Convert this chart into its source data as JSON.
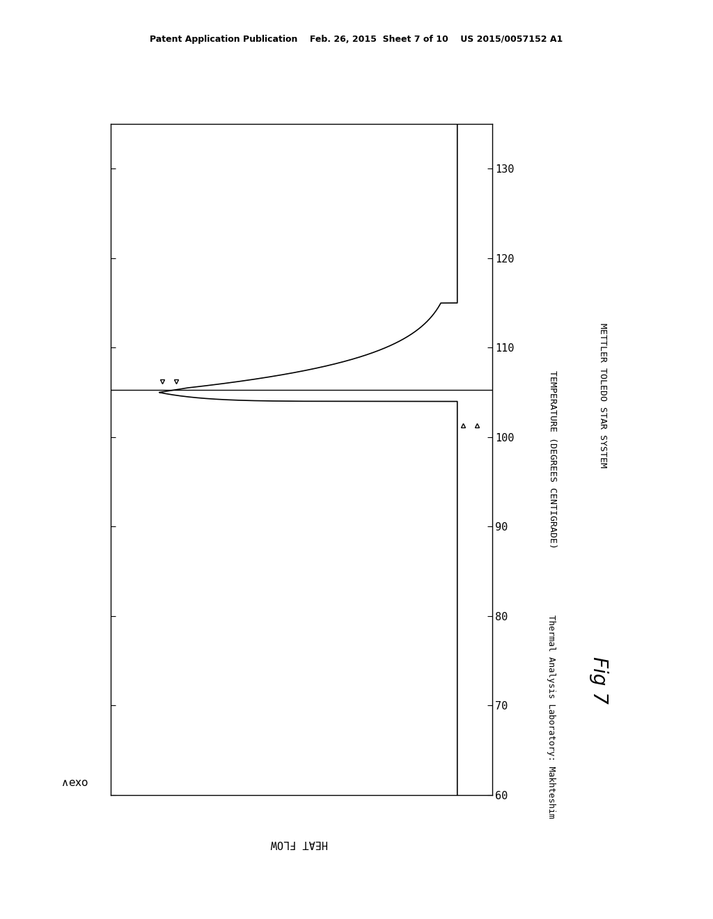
{
  "background_color": "#ffffff",
  "plot_bg_color": "#ffffff",
  "temp_ticks": [
    60,
    70,
    80,
    90,
    100,
    110,
    120,
    130
  ],
  "page_header": "Patent Application Publication    Feb. 26, 2015  Sheet 7 of 10    US 2015/0057152 A1",
  "line_color": "#000000",
  "text_color": "#000000",
  "font_size_ticks": 11,
  "font_size_labels": 10,
  "font_size_header": 9,
  "temp_min": 60,
  "temp_max": 135,
  "hf_min": 0,
  "hf_max": 5.5,
  "peak_temp": 105.3,
  "peak_hf_max": 4.8,
  "baseline_hf": 0.5,
  "ref_line_temp": 105.3,
  "down_tri_temp": 105.3,
  "down_tri_hf1": 4.55,
  "down_tri_hf2": 4.75,
  "up_tri_temp": 101.3,
  "up_tri_hf1": 0.22,
  "up_tri_hf2": 0.42,
  "label_exo": "^exo",
  "label_heatflow": "HEAT FLOW",
  "label_temp": "TEMPERATURE (DEGREES CENTIGRADE)",
  "label_mettler": "METTLER TOLEDO STAR SYSTEM",
  "label_thermal": "Thermal Analysis Laboratory: Makhteshim",
  "label_fig": "Fig 7"
}
